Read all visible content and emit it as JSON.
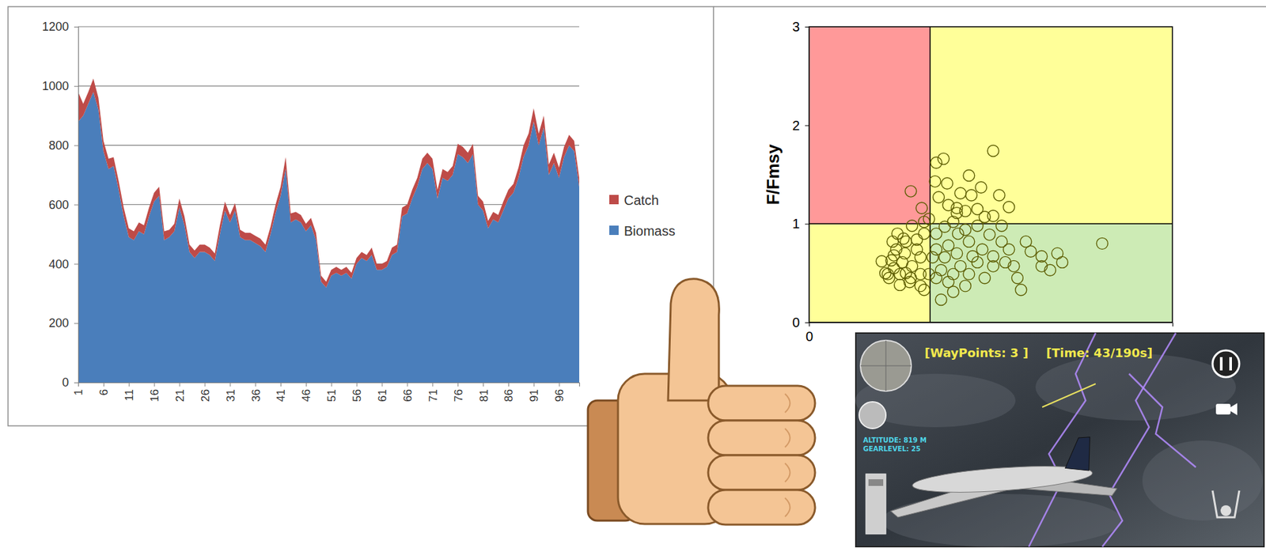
{
  "chart_data": [
    {
      "type": "area",
      "stacked": true,
      "grid": true,
      "legend": "right",
      "categories": [
        1,
        null,
        null,
        null,
        null,
        6,
        null,
        null,
        null,
        null,
        11,
        null,
        null,
        null,
        null,
        16,
        null,
        null,
        null,
        null,
        21,
        null,
        null,
        null,
        null,
        26,
        null,
        null,
        null,
        null,
        31,
        null,
        null,
        null,
        null,
        36,
        null,
        null,
        null,
        null,
        41,
        null,
        null,
        null,
        null,
        46,
        null,
        null,
        null,
        null,
        51,
        null,
        null,
        null,
        null,
        56,
        null,
        null,
        null,
        null,
        61,
        null,
        null,
        null,
        null,
        66,
        null,
        null,
        null,
        null,
        71,
        null,
        null,
        null,
        null,
        76,
        null,
        null,
        null,
        null,
        81,
        null,
        null,
        null,
        null,
        86,
        null,
        null,
        null,
        null,
        91,
        null,
        null,
        null,
        null,
        96,
        null,
        null,
        null,
        null
      ],
      "ylim": [
        0,
        1200
      ],
      "yticks": [
        0,
        200,
        400,
        600,
        800,
        1000,
        1200
      ],
      "series": [
        {
          "name": "Biomass",
          "color": "#4a7ebb",
          "values": [
            880,
            900,
            940,
            980,
            920,
            780,
            720,
            730,
            650,
            560,
            490,
            480,
            510,
            500,
            560,
            610,
            630,
            480,
            490,
            510,
            590,
            530,
            440,
            420,
            440,
            440,
            430,
            410,
            500,
            580,
            540,
            580,
            490,
            480,
            480,
            470,
            460,
            440,
            500,
            570,
            630,
            720,
            540,
            550,
            540,
            510,
            530,
            480,
            340,
            320,
            360,
            370,
            360,
            370,
            350,
            400,
            420,
            410,
            430,
            380,
            380,
            390,
            430,
            440,
            560,
            570,
            620,
            660,
            720,
            740,
            720,
            620,
            690,
            680,
            700,
            770,
            760,
            740,
            770,
            600,
            580,
            520,
            550,
            540,
            580,
            620,
            640,
            690,
            760,
            800,
            880,
            800,
            860,
            700,
            740,
            690,
            760,
            800,
            780,
            660
          ]
        },
        {
          "name": "Catch",
          "color": "#be4b48",
          "values": [
            100,
            40,
            40,
            45,
            40,
            35,
            35,
            30,
            30,
            30,
            30,
            30,
            30,
            30,
            30,
            30,
            30,
            30,
            25,
            25,
            30,
            30,
            25,
            25,
            25,
            25,
            25,
            25,
            30,
            30,
            25,
            25,
            25,
            25,
            25,
            25,
            25,
            25,
            25,
            30,
            30,
            40,
            30,
            25,
            25,
            25,
            25,
            25,
            20,
            20,
            20,
            20,
            20,
            20,
            20,
            20,
            20,
            20,
            25,
            20,
            20,
            20,
            25,
            25,
            30,
            30,
            30,
            30,
            35,
            35,
            35,
            30,
            30,
            30,
            30,
            35,
            35,
            35,
            35,
            30,
            30,
            25,
            25,
            25,
            30,
            30,
            30,
            35,
            40,
            40,
            45,
            40,
            40,
            35,
            35,
            35,
            35,
            35,
            35,
            30
          ]
        }
      ]
    },
    {
      "type": "scatter",
      "grid": false,
      "marker": "open-circle",
      "color": "#5c5c00",
      "y_label": "F/Fmsy",
      "xlim": [
        0,
        3
      ],
      "xticks": [
        0
      ],
      "ylim": [
        0,
        3
      ],
      "yticks": [
        0,
        1,
        2,
        3
      ],
      "regions": [
        {
          "x0": 0,
          "x1": 1,
          "y0": 1,
          "y1": 3,
          "color": "#ff9999"
        },
        {
          "x0": 1,
          "x1": 3,
          "y0": 1,
          "y1": 3,
          "color": "#ffff99"
        },
        {
          "x0": 0,
          "x1": 1,
          "y0": 0,
          "y1": 1,
          "color": "#ffff99"
        },
        {
          "x0": 1,
          "x1": 3,
          "y0": 0,
          "y1": 1,
          "color": "#cdebb5"
        }
      ],
      "x": [
        0.84,
        0.93,
        1.11,
        1.05,
        1.52,
        1.32,
        1.04,
        1.14,
        1.25,
        1.34,
        1.22,
        1.29,
        1.39,
        1.65,
        1.52,
        1.45,
        0.99,
        2.42,
        0.68,
        0.77,
        0.85,
        0.95,
        0.8,
        0.89,
        0.84,
        0.92,
        0.83,
        0.95,
        1.09,
        1.19,
        1.29,
        1.75,
        1.72,
        1.69,
        1.92,
        1.92,
        2.09,
        2.05,
        1.99,
        1.83,
        1.59,
        1.52,
        1.43,
        1.39,
        1.32,
        1.23,
        1.15,
        1.12,
        1.05,
        1.09,
        1.19,
        1.32,
        1.45,
        1.39,
        1.59,
        1.19,
        1.29,
        1.49,
        1.05,
        1.02,
        0.72,
        0.73,
        0.65,
        0.75,
        0.89,
        0.85,
        0.95,
        1.15,
        1.07,
        1.42,
        1.57,
        1.22,
        1.12,
        1.35,
        1.25,
        1.52,
        1.62,
        1.65,
        1.79,
        1.15,
        1.05,
        1.22,
        0.92,
        0.99,
        0.79,
        0.69,
        0.92,
        0.6,
        0.66,
        0.7,
        0.75,
        0.78,
        0.7,
        0.63,
        0.8
      ],
      "values": [
        1.33,
        1.16,
        1.66,
        1.62,
        1.74,
        1.49,
        1.43,
        1.41,
        1.31,
        1.29,
        1.16,
        1.13,
        1.15,
        1.17,
        1.08,
        1.07,
        1.05,
        0.8,
        0.63,
        0.61,
        0.57,
        0.9,
        0.82,
        0.74,
        0.45,
        0.37,
        0.41,
        0.33,
        0.23,
        0.31,
        0.37,
        0.33,
        0.45,
        0.57,
        0.57,
        0.67,
        0.61,
        0.7,
        0.53,
        0.72,
        0.82,
        0.67,
        0.74,
        0.61,
        0.82,
        0.9,
        0.78,
        0.66,
        0.74,
        0.53,
        0.49,
        0.49,
        0.45,
        0.98,
        0.98,
        1.02,
        0.94,
        0.89,
        0.9,
        0.66,
        0.74,
        0.9,
        0.49,
        0.49,
        0.84,
        0.98,
        1.02,
        1.19,
        1.27,
        1.37,
        1.29,
        1.11,
        0.97,
        0.67,
        0.57,
        0.57,
        0.61,
        0.74,
        0.82,
        0.41,
        0.45,
        0.7,
        0.66,
        0.49,
        0.7,
        0.82,
        0.49,
        0.62,
        0.45,
        0.55,
        0.38,
        0.85,
        0.68,
        0.5,
        0.5
      ]
    }
  ],
  "game_screenshot": {
    "waypoints": "[WayPoints: 3 ]",
    "time": "[Time: 43/190s]",
    "altitude": "ALTITUDE: 819 M",
    "gear_level": "GEARLEVEL: 25"
  }
}
